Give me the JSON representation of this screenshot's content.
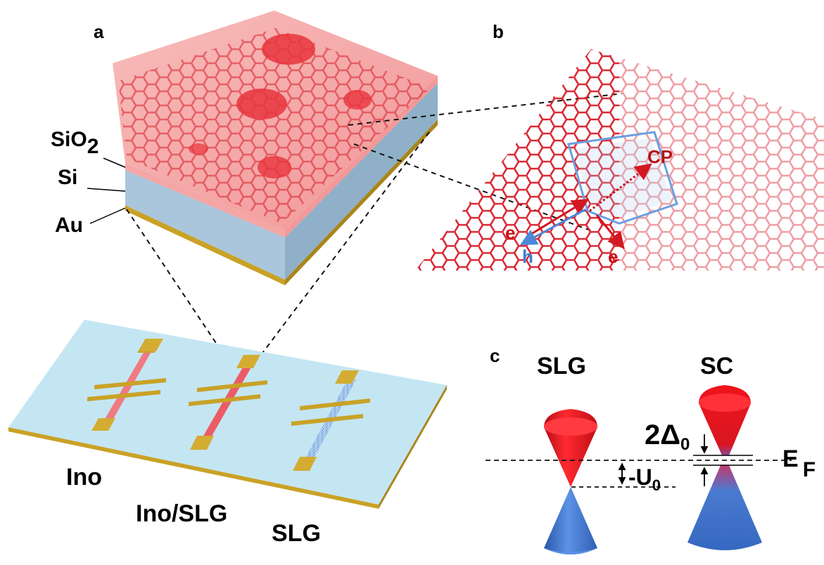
{
  "panels": {
    "a": "a",
    "b": "b",
    "c": "c"
  },
  "panel_a": {
    "layer_labels": {
      "sio2_main": "SiO",
      "sio2_sub": "2",
      "si": "Si",
      "au": "Au"
    },
    "device_labels": {
      "ino": "Ino",
      "ino_slg": "Ino/SLG",
      "slg": "SLG"
    }
  },
  "panel_b": {
    "cp": "CP",
    "e1": "e",
    "e2": "e",
    "h": "h"
  },
  "panel_c": {
    "slg": "SLG",
    "sc": "SC",
    "gap_main": "2Δ",
    "gap_sub": "0",
    "u_main": "-U",
    "u_sub": "0",
    "ef_main": "E",
    "ef_sub": "F"
  },
  "colors": {
    "graphene_red": "#e4202a",
    "graphene_blue": "#6fa0dc",
    "cone_red": "#e8121c",
    "cone_blue": "#3f72c8",
    "gold": "#c9a227",
    "substrate": "#bfe3f0"
  }
}
